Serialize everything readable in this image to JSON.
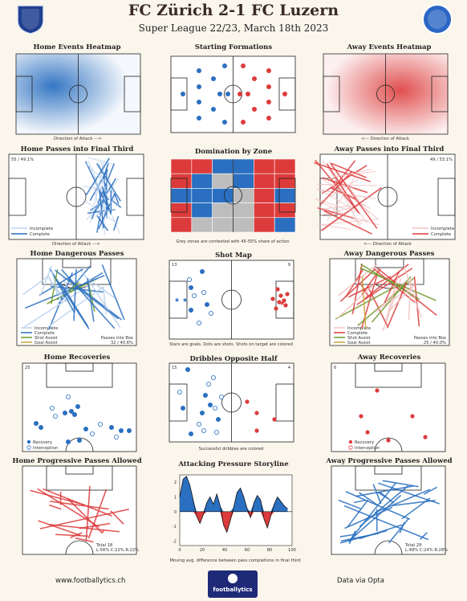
{
  "title": "FC Zürich 2-1 FC Luzern",
  "subtitle": "Super League 22/23, March 18th 2023",
  "logos": {
    "home": "FCZ",
    "away": "FCL"
  },
  "colors": {
    "home": "#2a6fc0",
    "away": "#dd3b3b",
    "grey": "#bdbdbd",
    "shot_assist": "#6e9b2b",
    "goal_assist": "#c9a43a"
  },
  "panels": {
    "home_heatmap": {
      "title": "Home Events Heatmap",
      "caption": "Direction of Attack --->"
    },
    "formations": {
      "title": "Starting Formations"
    },
    "away_heatmap": {
      "title": "Away Events Heatmap",
      "caption": "<--- Direction of Attack"
    },
    "home_final_third": {
      "title": "Home Passes into Final Third",
      "stat": "55 / 49.1%",
      "legend": [
        "Incomplete",
        "Complete"
      ],
      "caption": "Direction of Attack --->"
    },
    "domination": {
      "title": "Domination by Zone",
      "caption": "Grey zones are contested with 45-55% share of action"
    },
    "away_final_third": {
      "title": "Away Passes into Final Third",
      "stat": "49 / 53.1%",
      "legend": [
        "Incomplete",
        "Complete"
      ],
      "caption": "<--- Direction of Attack"
    },
    "home_dangerous": {
      "title": "Home Dangerous Passes",
      "legend": [
        "Incomplete",
        "Complete",
        "Shot Assist",
        "Goal Assist"
      ],
      "box_label": "Passes into Box",
      "box_value": "32 / 40.6%"
    },
    "shot_map": {
      "title": "Shot Map",
      "home_count": "13",
      "away_count": "9",
      "caption": "Stars are goals. Dots are shots. Shots on target are colored"
    },
    "away_dangerous": {
      "title": "Away Dangerous Passes",
      "legend": [
        "Incomplete",
        "Complete",
        "Shot Assist",
        "Goal Assist"
      ],
      "box_label": "Passes into Box",
      "box_value": "25 / 40.0%"
    },
    "home_recoveries": {
      "title": "Home Recoveries",
      "count": "25",
      "legend": [
        "Recovery",
        "Interception"
      ]
    },
    "dribbles": {
      "title": "Dribbles Opposite Half",
      "home_count": "15",
      "away_count": "4",
      "caption": "Successful dribbles are colored"
    },
    "away_recoveries": {
      "title": "Away Recoveries",
      "count": "6",
      "legend": [
        "Recovery",
        "Interception"
      ]
    },
    "home_prog": {
      "title": "Home Progressive Passes Allowed",
      "total": "Total 18",
      "split": "L:56% C:22% R:22%"
    },
    "storyline": {
      "title": "Attacking Pressure Storyline",
      "caption": "Moving avg. difference between pass completions in final third"
    },
    "away_prog": {
      "title": "Away Progressive Passes Allowed",
      "total": "Total 29",
      "split": "L:48% C:24% R:28%"
    }
  },
  "footer": {
    "left": "www.footballytics.ch",
    "center": "footballytics",
    "right": "Data via Opta"
  },
  "chart_data": {
    "type": "area",
    "title": "Attacking Pressure Storyline",
    "xlabel": "Moving avg. difference between pass completions in final third",
    "xlim": [
      0,
      100
    ],
    "ylim": [
      -2.3,
      2.5
    ],
    "xticks": [
      0,
      20,
      40,
      60,
      80,
      100
    ],
    "yticks": [
      -2,
      -1,
      0,
      1,
      2
    ],
    "x": [
      0,
      3,
      6,
      9,
      12,
      15,
      18,
      21,
      24,
      27,
      30,
      33,
      36,
      39,
      42,
      45,
      48,
      51,
      54,
      57,
      60,
      63,
      66,
      69,
      72,
      75,
      78,
      81,
      84,
      87,
      90,
      93,
      96
    ],
    "values": [
      1.0,
      2.2,
      2.4,
      1.8,
      0.8,
      -0.3,
      -0.8,
      -0.2,
      0.6,
      1.0,
      0.5,
      1.2,
      0.4,
      -0.9,
      -1.4,
      -0.6,
      0.3,
      1.3,
      1.6,
      1.0,
      0.2,
      -0.4,
      0.6,
      1.1,
      0.8,
      -0.5,
      -1.1,
      -0.3,
      0.5,
      1.0,
      0.7,
      0.4,
      0.2
    ],
    "series": [
      {
        "name": "Home",
        "color": "#2a6fc0"
      },
      {
        "name": "Away",
        "color": "#dd3b3b"
      }
    ]
  }
}
